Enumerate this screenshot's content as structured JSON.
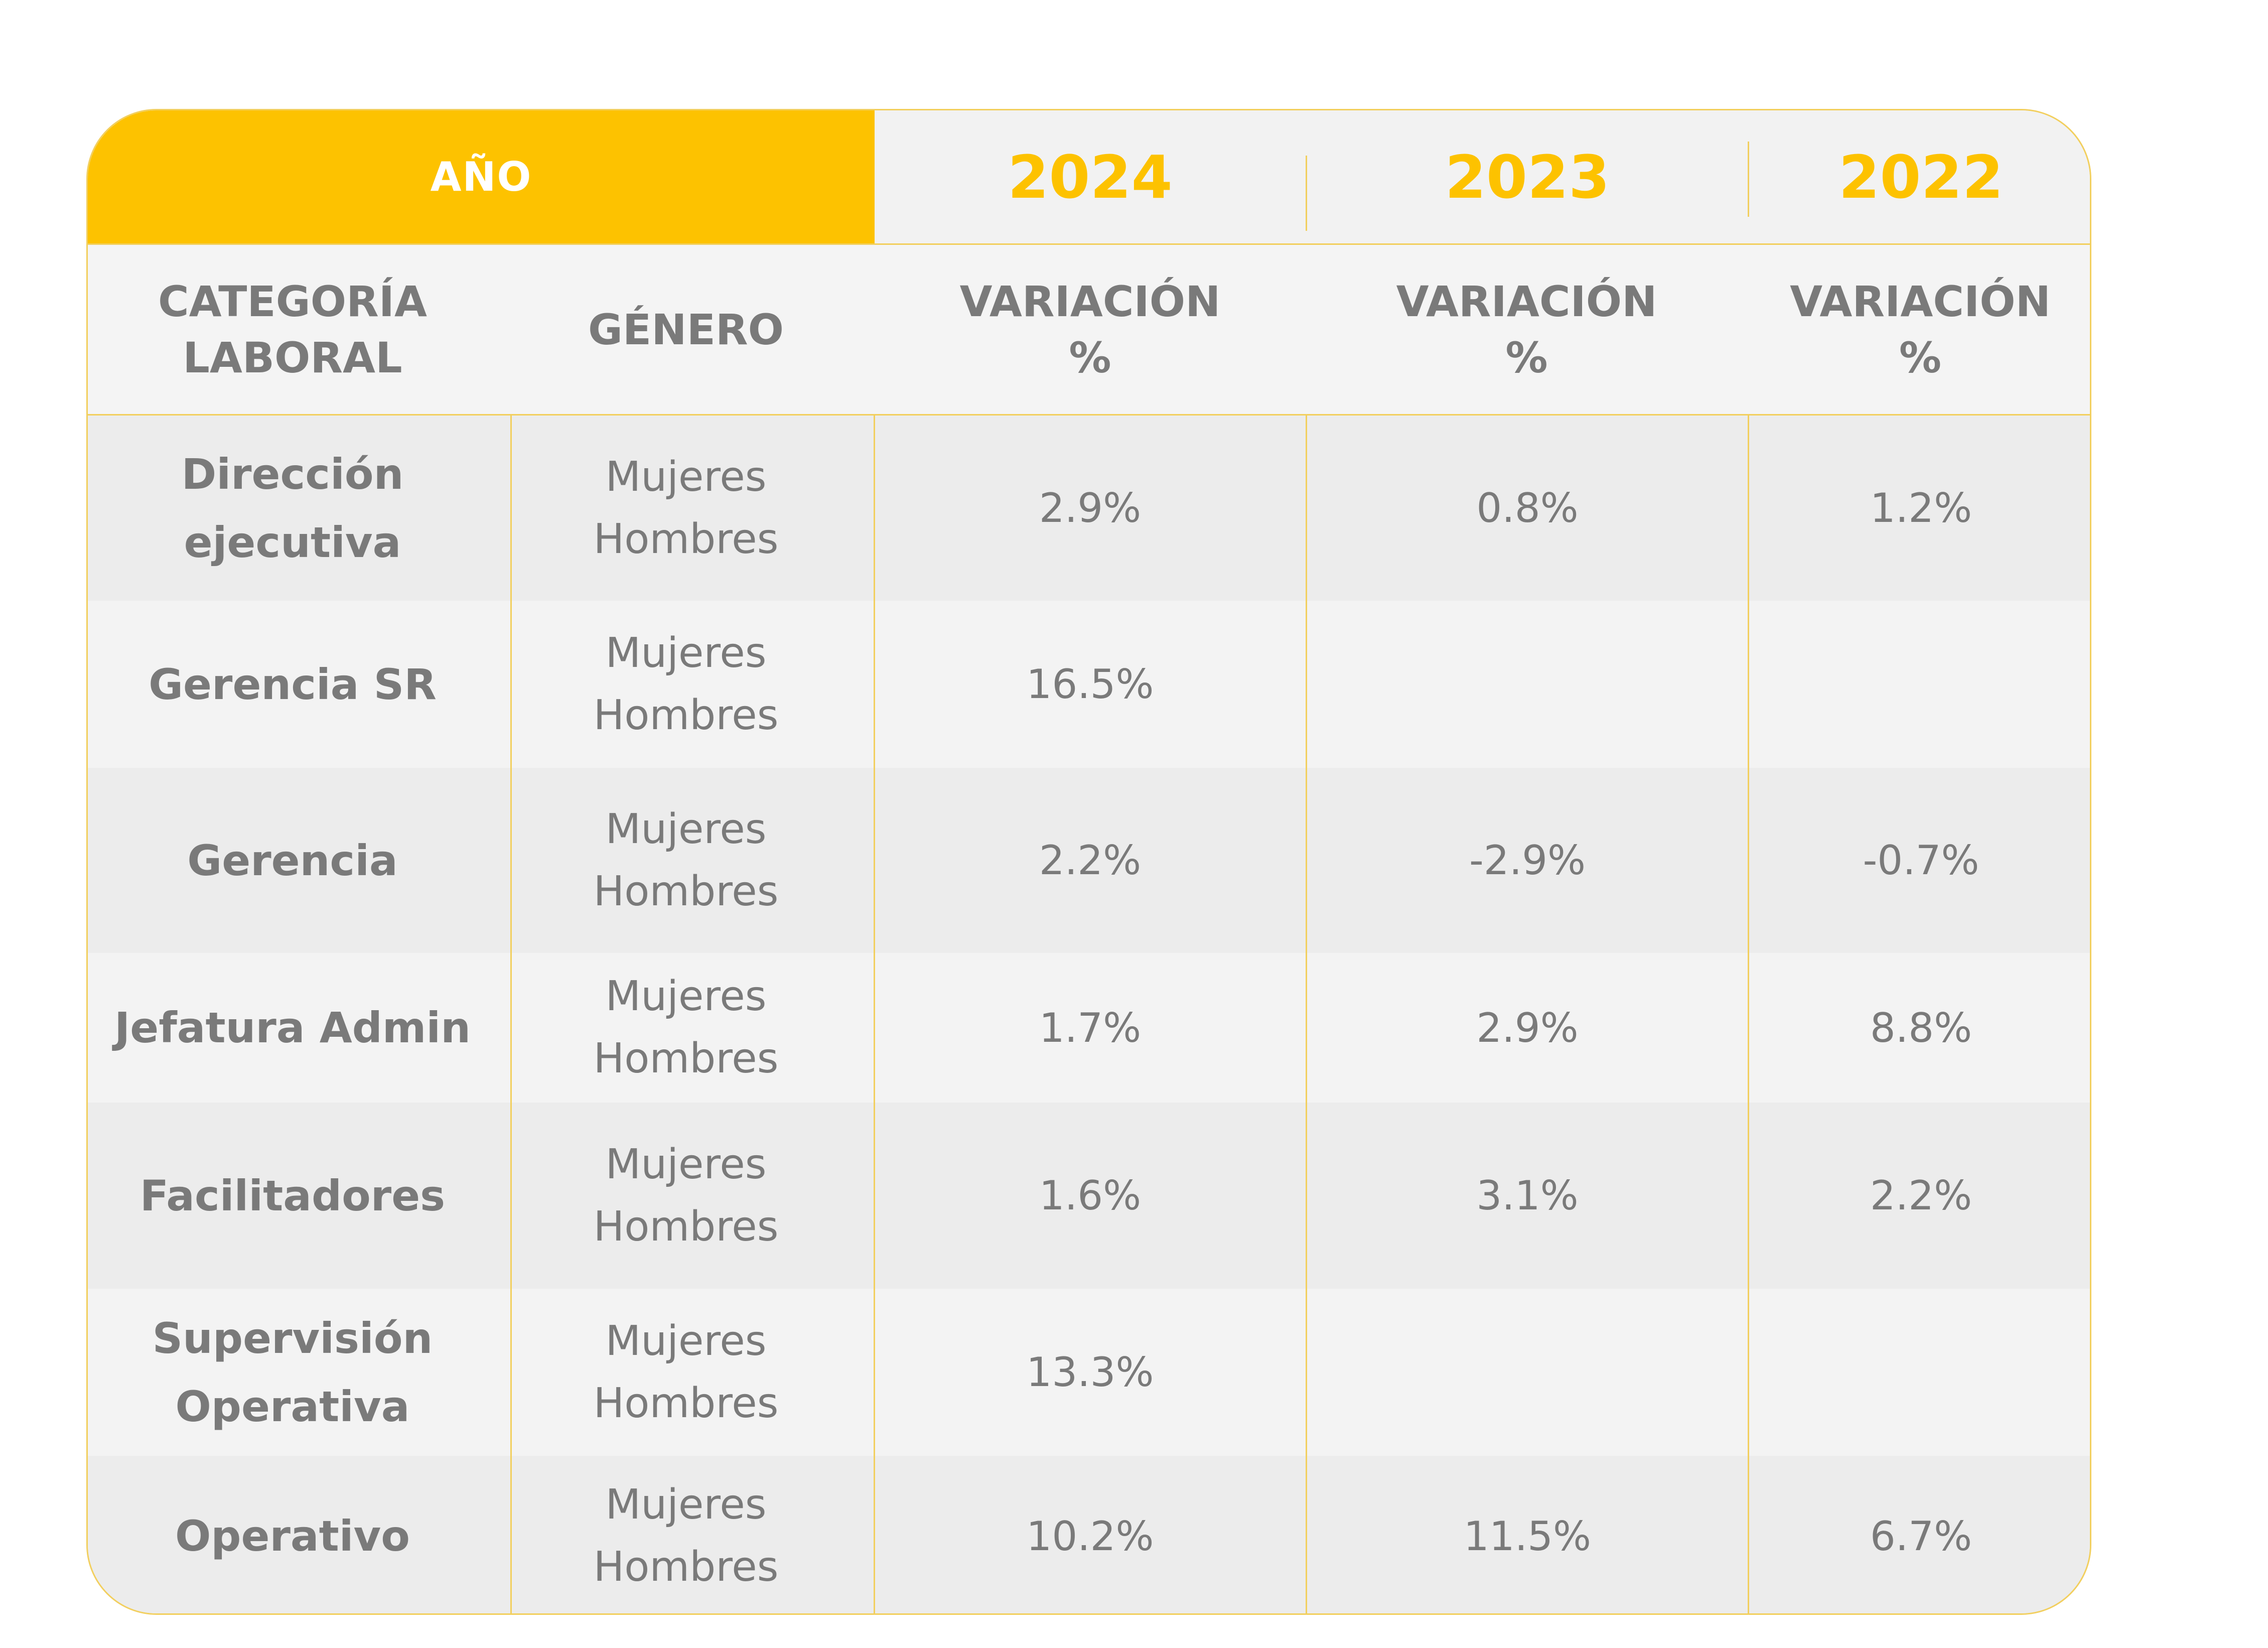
{
  "header": {
    "year_label": "AÑO",
    "years": [
      "2024",
      "2023",
      "2022"
    ],
    "col_category": "CATEGORÍA\nLABORAL",
    "col_gender": "GÉNERO",
    "col_variation": "VARIACIÓN\n%"
  },
  "gender_labels": {
    "women": "Mujeres",
    "men": "Hombres"
  },
  "rows": [
    {
      "category": "Dirección\nejecutiva",
      "v2024": "2.9%",
      "v2023": "0.8%",
      "v2022": "1.2%"
    },
    {
      "category": "Gerencia SR",
      "v2024": "16.5%",
      "v2023": "",
      "v2022": ""
    },
    {
      "category": "Gerencia",
      "v2024": "2.2%",
      "v2023": "-2.9%",
      "v2022": "-0.7%"
    },
    {
      "category": "Jefatura Admin",
      "v2024": "1.7%",
      "v2023": "2.9%",
      "v2022": "8.8%"
    },
    {
      "category": "Facilitadores",
      "v2024": "1.6%",
      "v2023": "3.1%",
      "v2022": "2.2%"
    },
    {
      "category": "Supervisión\nOperativa",
      "v2024": "13.3%",
      "v2023": "",
      "v2022": ""
    },
    {
      "category": "Operativo",
      "v2024": "10.2%",
      "v2023": "11.5%",
      "v2022": "6.7%"
    }
  ],
  "colors": {
    "accent": "#fdc200",
    "border": "#f2cf5e",
    "text": "#7a7a7a",
    "row_dark": "#ececec",
    "row_light": "#f3f3f3"
  }
}
